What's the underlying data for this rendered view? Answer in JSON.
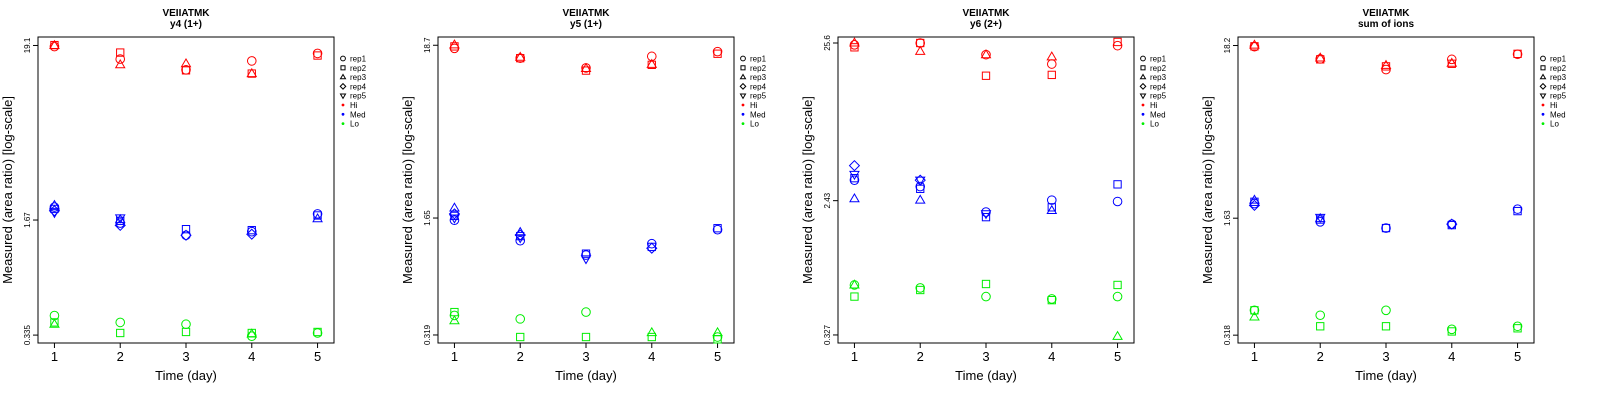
{
  "legend_entries": [
    {
      "label": "rep1",
      "symbol": "circle"
    },
    {
      "label": "rep2",
      "symbol": "square"
    },
    {
      "label": "rep3",
      "symbol": "triangle"
    },
    {
      "label": "rep4",
      "symbol": "diamond"
    },
    {
      "label": "rep5",
      "symbol": "triangle-down"
    },
    {
      "label": "Hi",
      "symbol": "dot",
      "color": "#ff0000"
    },
    {
      "label": "Med",
      "symbol": "dot",
      "color": "#0000ff"
    },
    {
      "label": "Lo",
      "symbol": "dot",
      "color": "#00ee00"
    }
  ],
  "colors": {
    "Hi": "#ff0000",
    "Med": "#0000ff",
    "Lo": "#00ee00"
  },
  "chart_data": [
    {
      "type": "scatter",
      "title": "VEIIATMK",
      "subtitle": "y4 (1+)",
      "xlabel": "Time (day)",
      "ylabel": "Measured (area ratio) [log-scale]",
      "x_ticks": [
        1,
        2,
        3,
        4,
        5
      ],
      "y_ticks": [
        "0.335",
        "1.67",
        "19.1"
      ],
      "y_tick_values": [
        0.335,
        1.67,
        19.1
      ],
      "ylim": [
        0.3,
        21.5
      ],
      "series": [
        {
          "group": "Hi",
          "points": [
            [
              1,
              "circle",
              18.8
            ],
            [
              1,
              "square",
              19.2
            ],
            [
              1,
              "triangle",
              19.1
            ],
            [
              2,
              "circle",
              15.8
            ],
            [
              2,
              "square",
              17.3
            ],
            [
              2,
              "triangle",
              14.6
            ],
            [
              3,
              "circle",
              13.6
            ],
            [
              3,
              "square",
              13.5
            ],
            [
              3,
              "triangle",
              14.8
            ],
            [
              4,
              "circle",
              15.4
            ],
            [
              4,
              "square",
              12.9
            ],
            [
              4,
              "triangle",
              12.9
            ],
            [
              5,
              "circle",
              17.1
            ],
            [
              5,
              "square",
              16.6
            ]
          ]
        },
        {
          "group": "Med",
          "points": [
            [
              1,
              "circle",
              2.0
            ],
            [
              1,
              "square",
              1.95
            ],
            [
              1,
              "triangle",
              2.05
            ],
            [
              1,
              "diamond",
              1.9
            ],
            [
              1,
              "triangle-down",
              1.85
            ],
            [
              2,
              "circle",
              1.6
            ],
            [
              2,
              "square",
              1.65
            ],
            [
              2,
              "triangle",
              1.68
            ],
            [
              2,
              "diamond",
              1.55
            ],
            [
              2,
              "triangle-down",
              1.72
            ],
            [
              3,
              "circle",
              1.35
            ],
            [
              3,
              "square",
              1.47
            ],
            [
              3,
              "diamond",
              1.35
            ],
            [
              4,
              "circle",
              1.42
            ],
            [
              4,
              "square",
              1.45
            ],
            [
              4,
              "diamond",
              1.37
            ],
            [
              5,
              "circle",
              1.82
            ],
            [
              5,
              "square",
              1.78
            ],
            [
              5,
              "triangle",
              1.7
            ]
          ]
        },
        {
          "group": "Lo",
          "points": [
            [
              1,
              "circle",
              0.44
            ],
            [
              1,
              "square",
              0.4
            ],
            [
              1,
              "triangle",
              0.39
            ],
            [
              2,
              "circle",
              0.4
            ],
            [
              2,
              "square",
              0.345
            ],
            [
              3,
              "circle",
              0.39
            ],
            [
              3,
              "square",
              0.35
            ],
            [
              4,
              "circle",
              0.33
            ],
            [
              4,
              "square",
              0.345
            ],
            [
              4,
              "triangle",
              0.34
            ],
            [
              5,
              "circle",
              0.345
            ],
            [
              5,
              "square",
              0.35
            ]
          ]
        }
      ]
    },
    {
      "type": "scatter",
      "title": "VEIIATMK",
      "subtitle": "y5 (1+)",
      "xlabel": "Time (day)",
      "ylabel": "Measured (area ratio) [log-scale]",
      "x_ticks": [
        1,
        2,
        3,
        4,
        5
      ],
      "y_ticks": [
        "0.319",
        "1.65",
        "18.7"
      ],
      "y_tick_values": [
        0.319,
        1.65,
        18.7
      ],
      "ylim": [
        0.285,
        21.0
      ],
      "series": [
        {
          "group": "Hi",
          "points": [
            [
              1,
              "circle",
              17.9
            ],
            [
              1,
              "square",
              18.4
            ],
            [
              1,
              "triangle",
              18.8
            ],
            [
              2,
              "circle",
              15.6
            ],
            [
              2,
              "square",
              15.6
            ],
            [
              2,
              "triangle",
              15.8
            ],
            [
              3,
              "circle",
              13.6
            ],
            [
              3,
              "square",
              13.1
            ],
            [
              3,
              "triangle",
              13.5
            ],
            [
              4,
              "circle",
              16.0
            ],
            [
              4,
              "square",
              14.2
            ],
            [
              4,
              "triangle",
              14.3
            ],
            [
              5,
              "circle",
              17.1
            ],
            [
              5,
              "square",
              16.6
            ]
          ]
        },
        {
          "group": "Med",
          "points": [
            [
              1,
              "circle",
              1.6
            ],
            [
              1,
              "square",
              1.7
            ],
            [
              1,
              "triangle",
              1.9
            ],
            [
              1,
              "diamond",
              1.75
            ],
            [
              1,
              "triangle-down",
              1.65
            ],
            [
              2,
              "circle",
              1.2
            ],
            [
              2,
              "square",
              1.28
            ],
            [
              2,
              "triangle",
              1.35
            ],
            [
              2,
              "diamond",
              1.3
            ],
            [
              2,
              "triangle-down",
              1.25
            ],
            [
              3,
              "circle",
              0.98
            ],
            [
              3,
              "square",
              1.0
            ],
            [
              3,
              "triangle-down",
              0.93
            ],
            [
              4,
              "circle",
              1.15
            ],
            [
              4,
              "square",
              1.1
            ],
            [
              4,
              "diamond",
              1.08
            ],
            [
              5,
              "circle",
              1.4
            ],
            [
              5,
              "square",
              1.43
            ]
          ]
        },
        {
          "group": "Lo",
          "points": [
            [
              1,
              "circle",
              0.42
            ],
            [
              1,
              "square",
              0.44
            ],
            [
              1,
              "triangle",
              0.39
            ],
            [
              2,
              "circle",
              0.4
            ],
            [
              2,
              "square",
              0.31
            ],
            [
              3,
              "circle",
              0.44
            ],
            [
              3,
              "square",
              0.31
            ],
            [
              4,
              "square",
              0.31
            ],
            [
              4,
              "triangle",
              0.33
            ],
            [
              5,
              "circle",
              0.31
            ],
            [
              5,
              "square",
              0.3
            ],
            [
              5,
              "triangle",
              0.33
            ]
          ]
        }
      ]
    },
    {
      "type": "scatter",
      "title": "VEIIATMK",
      "subtitle": "y6 (2+)",
      "xlabel": "Time (day)",
      "ylabel": "Measured (area ratio) [log-scale]",
      "x_ticks": [
        1,
        2,
        3,
        4,
        5
      ],
      "y_ticks": [
        "0.327",
        "2.43",
        "25.6"
      ],
      "y_tick_values": [
        0.327,
        2.43,
        25.6
      ],
      "ylim": [
        0.29,
        28.0
      ],
      "series": [
        {
          "group": "Hi",
          "points": [
            [
              1,
              "circle",
              24.9
            ],
            [
              1,
              "square",
              24.0
            ],
            [
              1,
              "triangle",
              25.6
            ],
            [
              2,
              "circle",
              25.6
            ],
            [
              2,
              "square",
              25.6
            ],
            [
              2,
              "triangle",
              22.6
            ],
            [
              3,
              "circle",
              21.5
            ],
            [
              3,
              "square",
              15.7
            ],
            [
              3,
              "triangle",
              21.5
            ],
            [
              4,
              "circle",
              18.7
            ],
            [
              4,
              "square",
              15.9
            ],
            [
              4,
              "triangle",
              20.8
            ],
            [
              5,
              "circle",
              24.6
            ],
            [
              5,
              "square",
              26.0
            ]
          ]
        },
        {
          "group": "Med",
          "points": [
            [
              1,
              "circle",
              3.3
            ],
            [
              1,
              "square",
              3.4
            ],
            [
              1,
              "triangle",
              2.5
            ],
            [
              1,
              "diamond",
              4.1
            ],
            [
              1,
              "triangle-down",
              3.6
            ],
            [
              2,
              "circle",
              3.0
            ],
            [
              2,
              "square",
              2.9
            ],
            [
              2,
              "triangle",
              2.45
            ],
            [
              2,
              "diamond",
              3.3
            ],
            [
              2,
              "triangle-down",
              3.3
            ],
            [
              3,
              "circle",
              2.05
            ],
            [
              3,
              "square",
              1.9
            ],
            [
              3,
              "triangle-down",
              2.0
            ],
            [
              4,
              "circle",
              2.45
            ],
            [
              4,
              "square",
              2.2
            ],
            [
              4,
              "triangle",
              2.1
            ],
            [
              5,
              "circle",
              2.4
            ],
            [
              5,
              "square",
              3.1
            ]
          ]
        },
        {
          "group": "Lo",
          "points": [
            [
              1,
              "circle",
              0.69
            ],
            [
              1,
              "square",
              0.58
            ],
            [
              1,
              "triangle",
              0.69
            ],
            [
              2,
              "circle",
              0.66
            ],
            [
              2,
              "square",
              0.64
            ],
            [
              3,
              "circle",
              0.58
            ],
            [
              3,
              "square",
              0.7
            ],
            [
              4,
              "circle",
              0.56
            ],
            [
              4,
              "square",
              0.55
            ],
            [
              5,
              "circle",
              0.58
            ],
            [
              5,
              "square",
              0.69
            ],
            [
              5,
              "triangle",
              0.32
            ]
          ]
        }
      ]
    },
    {
      "type": "scatter",
      "title": "VEIIATMK",
      "subtitle": "sum of ions",
      "xlabel": "Time (day)",
      "ylabel": "Measured (area ratio) [log-scale]",
      "x_ticks": [
        1,
        2,
        3,
        4,
        5
      ],
      "y_ticks": [
        "0.318",
        "1.63",
        "18.2"
      ],
      "y_tick_values": [
        0.318,
        1.63,
        18.2
      ],
      "ylim": [
        0.285,
        20.5
      ],
      "series": [
        {
          "group": "Hi",
          "points": [
            [
              1,
              "circle",
              17.9
            ],
            [
              1,
              "square",
              18.0
            ],
            [
              1,
              "triangle",
              18.3
            ],
            [
              2,
              "circle",
              15.1
            ],
            [
              2,
              "square",
              15.0
            ],
            [
              2,
              "triangle",
              15.3
            ],
            [
              3,
              "circle",
              13.0
            ],
            [
              3,
              "square",
              13.6
            ],
            [
              3,
              "triangle",
              13.8
            ],
            [
              4,
              "circle",
              15.0
            ],
            [
              4,
              "square",
              14.1
            ],
            [
              4,
              "triangle",
              14.2
            ],
            [
              5,
              "circle",
              16.1
            ],
            [
              5,
              "square",
              16.2
            ]
          ]
        },
        {
          "group": "Med",
          "points": [
            [
              1,
              "circle",
              2.0
            ],
            [
              1,
              "square",
              2.05
            ],
            [
              1,
              "triangle",
              2.1
            ],
            [
              1,
              "diamond",
              1.95
            ],
            [
              2,
              "circle",
              1.55
            ],
            [
              2,
              "square",
              1.6
            ],
            [
              2,
              "triangle",
              1.62
            ],
            [
              2,
              "triangle-down",
              1.65
            ],
            [
              3,
              "circle",
              1.42
            ],
            [
              3,
              "square",
              1.42
            ],
            [
              4,
              "circle",
              1.5
            ],
            [
              4,
              "square",
              1.48
            ],
            [
              4,
              "diamond",
              1.5
            ],
            [
              5,
              "circle",
              1.85
            ],
            [
              5,
              "square",
              1.8
            ]
          ]
        },
        {
          "group": "Lo",
          "points": [
            [
              1,
              "circle",
              0.45
            ],
            [
              1,
              "square",
              0.45
            ],
            [
              1,
              "triangle",
              0.41
            ],
            [
              2,
              "circle",
              0.42
            ],
            [
              2,
              "square",
              0.36
            ],
            [
              3,
              "circle",
              0.45
            ],
            [
              3,
              "square",
              0.36
            ],
            [
              4,
              "circle",
              0.345
            ],
            [
              4,
              "square",
              0.335
            ],
            [
              5,
              "circle",
              0.36
            ],
            [
              5,
              "square",
              0.35
            ]
          ]
        }
      ]
    }
  ]
}
